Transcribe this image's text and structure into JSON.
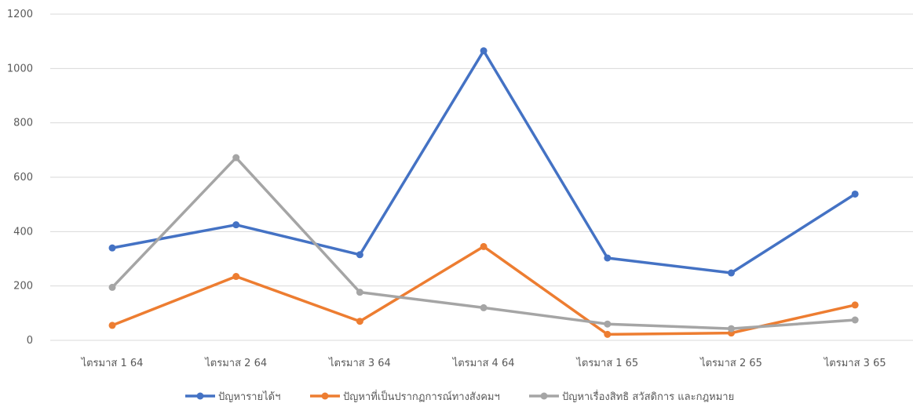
{
  "chart_data": {
    "type": "line",
    "title": "",
    "xlabel": "",
    "ylabel": "",
    "ylim": [
      0,
      1200
    ],
    "yticks": [
      0,
      200,
      400,
      600,
      800,
      1000,
      1200
    ],
    "grid": true,
    "legend_position": "bottom",
    "categories": [
      "ไตรมาส 1 64",
      "ไตรมาส 2 64",
      "ไตรมาส 3 64",
      "ไตรมาส 4 64",
      "ไตรมาส 1 65",
      "ไตรมาส 2 65",
      "ไตรมาส 3 65"
    ],
    "series": [
      {
        "name": "ปัญหารายได้ฯ",
        "color": "#4472C4",
        "values": [
          340,
          425,
          315,
          1065,
          303,
          248,
          538
        ]
      },
      {
        "name": "ปัญหาที่เป็นปรากฏการณ์ทางสังคมฯ",
        "color": "#ED7D31",
        "values": [
          55,
          235,
          70,
          345,
          22,
          27,
          130
        ]
      },
      {
        "name": "ปัญหาเรื่องสิทธิ สวัสดิการ และกฎหมาย",
        "color": "#A5A5A5",
        "values": [
          195,
          672,
          177,
          120,
          60,
          43,
          75
        ]
      }
    ]
  }
}
